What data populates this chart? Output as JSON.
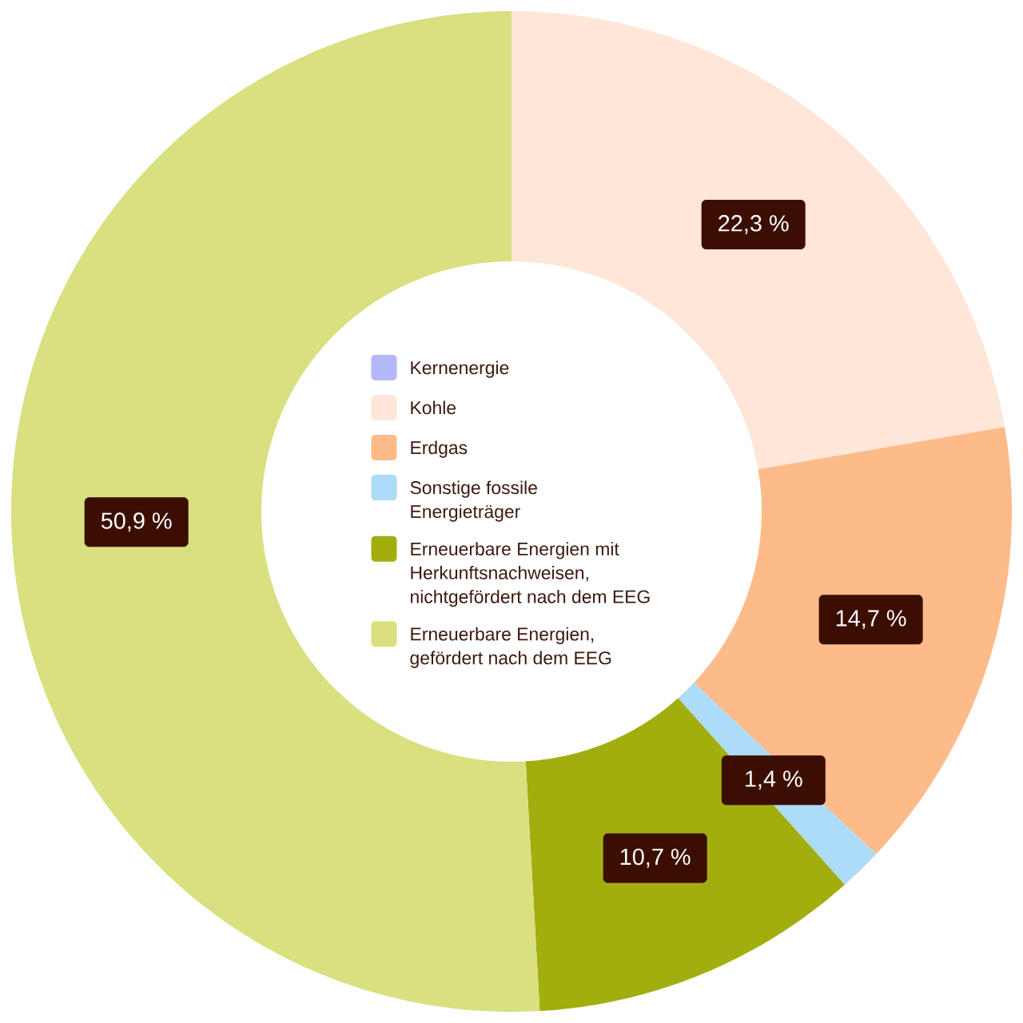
{
  "chart_data": {
    "type": "donut",
    "categories": [
      "Kernenergie",
      "Kohle",
      "Erdgas",
      "Sonstige fossile Energieträger",
      "Erneuerbare Energien mit Herkunftsnachweisen, nichtgefördert nach dem EEG",
      "Erneuerbare Energien, gefördert nach dem EEG"
    ],
    "values": [
      0,
      22.3,
      14.7,
      1.4,
      10.7,
      50.9
    ],
    "colors": [
      "#b3b8fa",
      "#fee6d8",
      "#fdbb8a",
      "#acdcf8",
      "#a2ae0e",
      "#d8e080"
    ],
    "value_labels": [
      null,
      "22,3 %",
      "14,7 %",
      "1,4 %",
      "10,7 %",
      "50,9 %"
    ],
    "legend": "center"
  }
}
